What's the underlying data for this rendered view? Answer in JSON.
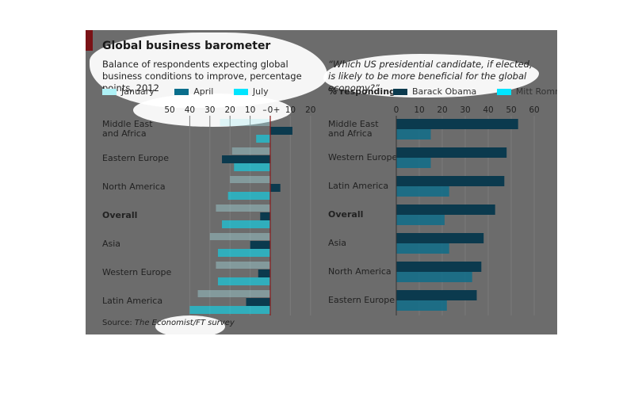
{
  "title": "Global business barometer",
  "subtitle": "Balance of respondents expecting global business conditions to improve, percentage points, 2012",
  "question": "“Which US presidential candidate, if elected, is likely to be more beneficial for the global economy?”",
  "responding_label": "% responding:",
  "source_label": "Source:",
  "source_text": "The Economist/FT survey",
  "colors": {
    "background": "#6c6c6c",
    "january": "#aef0f5",
    "april": "#0a6e8c",
    "july": "#00e5ff",
    "obama": "#0b3a4e",
    "romney": "#00e5ff",
    "zero_line": "#8b1a1a",
    "grid": "#7a7a7a"
  },
  "chart_data": [
    {
      "type": "bar",
      "orientation": "horizontal",
      "categories": [
        "Middle East and Africa",
        "Eastern Europe",
        "North America",
        "Overall",
        "Asia",
        "Western Europe",
        "Latin America"
      ],
      "series": [
        {
          "name": "January",
          "values": [
            -25,
            -19,
            -20,
            -27,
            -30,
            -27,
            -36
          ]
        },
        {
          "name": "April",
          "values": [
            11,
            -24,
            5,
            -5,
            -10,
            -6,
            -12
          ]
        },
        {
          "name": "July",
          "values": [
            -7,
            -18,
            -21,
            -24,
            -26,
            -26,
            -40
          ]
        }
      ],
      "tick_labels": [
        "50",
        "40",
        "30",
        "20",
        "10",
        "–",
        "0",
        "+",
        "10",
        "20"
      ],
      "xlim": [
        -50,
        20
      ],
      "grid": true,
      "legend": "top"
    },
    {
      "type": "bar",
      "orientation": "horizontal",
      "categories": [
        "Middle East and Africa",
        "Western Europe",
        "Latin America",
        "Overall",
        "Asia",
        "North America",
        "Eastern Europe"
      ],
      "series": [
        {
          "name": "Barack Obama",
          "values": [
            53,
            48,
            47,
            43,
            38,
            37,
            35
          ]
        },
        {
          "name": "Mitt Romney",
          "values": [
            15,
            15,
            23,
            21,
            23,
            33,
            22
          ]
        }
      ],
      "tick_labels": [
        "0",
        "10",
        "20",
        "30",
        "40",
        "50",
        "60"
      ],
      "xlim": [
        0,
        60
      ],
      "grid": true,
      "legend": "top"
    }
  ]
}
